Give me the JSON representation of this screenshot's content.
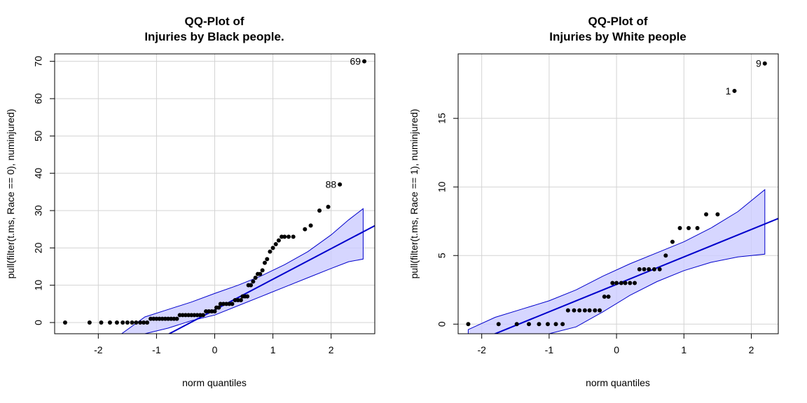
{
  "chart_data": [
    {
      "type": "scatter",
      "title_line1": "QQ-Plot of",
      "title_line2": "Injuries by Black people.",
      "xlabel": "norm quantiles",
      "ylabel": "pull(filter(t.ms, Race == 0), numinjured)",
      "xlim": [
        -2.75,
        2.75
      ],
      "ylim": [
        -3,
        72
      ],
      "xticks": [
        -2,
        -1,
        0,
        1,
        2
      ],
      "yticks": [
        0,
        10,
        20,
        30,
        40,
        50,
        60,
        70
      ],
      "grid": true,
      "colors": {
        "points": "#000000",
        "line": "#0000cc",
        "band_fill": "#ccccff",
        "band_edge": "#0000cc",
        "grid": "#d3d3d3"
      },
      "reference_line": {
        "intercept": 3.4,
        "slope": 8.2
      },
      "confidence_band": {
        "x": [
          -1.6,
          -1.2,
          -0.8,
          -0.4,
          0,
          0.4,
          0.8,
          1.2,
          1.6,
          2.0,
          2.3,
          2.55
        ],
        "lower": [
          -3,
          -3,
          -1.5,
          0.5,
          2.0,
          4.5,
          7.0,
          9.5,
          12.0,
          14.5,
          16.3,
          17.0
        ],
        "upper": [
          -3,
          1.5,
          3.5,
          5.5,
          7.8,
          10.0,
          12.5,
          15.5,
          19.0,
          23.5,
          27.5,
          30.5
        ]
      },
      "points": [
        [
          -2.57,
          0
        ],
        [
          -2.15,
          0
        ],
        [
          -1.95,
          0
        ],
        [
          -1.8,
          0
        ],
        [
          -1.68,
          0
        ],
        [
          -1.58,
          0
        ],
        [
          -1.5,
          0
        ],
        [
          -1.42,
          0
        ],
        [
          -1.35,
          0
        ],
        [
          -1.28,
          0
        ],
        [
          -1.22,
          0
        ],
        [
          -1.16,
          0
        ],
        [
          -1.1,
          1
        ],
        [
          -1.05,
          1
        ],
        [
          -1.0,
          1
        ],
        [
          -0.95,
          1
        ],
        [
          -0.9,
          1
        ],
        [
          -0.85,
          1
        ],
        [
          -0.8,
          1
        ],
        [
          -0.75,
          1
        ],
        [
          -0.7,
          1
        ],
        [
          -0.65,
          1
        ],
        [
          -0.6,
          2
        ],
        [
          -0.55,
          2
        ],
        [
          -0.5,
          2
        ],
        [
          -0.45,
          2
        ],
        [
          -0.4,
          2
        ],
        [
          -0.35,
          2
        ],
        [
          -0.3,
          2
        ],
        [
          -0.25,
          2
        ],
        [
          -0.2,
          2
        ],
        [
          -0.15,
          3
        ],
        [
          -0.1,
          3
        ],
        [
          -0.05,
          3
        ],
        [
          0.0,
          3
        ],
        [
          0.03,
          4
        ],
        [
          0.07,
          4
        ],
        [
          0.1,
          5
        ],
        [
          0.15,
          5
        ],
        [
          0.2,
          5
        ],
        [
          0.25,
          5
        ],
        [
          0.3,
          5
        ],
        [
          0.35,
          6
        ],
        [
          0.4,
          6
        ],
        [
          0.45,
          6
        ],
        [
          0.48,
          7
        ],
        [
          0.52,
          7
        ],
        [
          0.56,
          7
        ],
        [
          0.58,
          10
        ],
        [
          0.62,
          10
        ],
        [
          0.66,
          11
        ],
        [
          0.7,
          12
        ],
        [
          0.74,
          13
        ],
        [
          0.78,
          13
        ],
        [
          0.82,
          14
        ],
        [
          0.86,
          16
        ],
        [
          0.9,
          17
        ],
        [
          0.95,
          19
        ],
        [
          1.0,
          20
        ],
        [
          1.05,
          21
        ],
        [
          1.1,
          22
        ],
        [
          1.15,
          23
        ],
        [
          1.2,
          23
        ],
        [
          1.27,
          23
        ],
        [
          1.35,
          23
        ],
        [
          1.55,
          25
        ],
        [
          1.65,
          26
        ],
        [
          1.8,
          30
        ],
        [
          1.95,
          31
        ],
        [
          2.15,
          37
        ],
        [
          2.57,
          70
        ]
      ],
      "annotations": [
        {
          "text": "88",
          "x": 2.15,
          "y": 37
        },
        {
          "text": "69",
          "x": 2.57,
          "y": 70
        }
      ]
    },
    {
      "type": "scatter",
      "title_line1": "QQ-Plot of",
      "title_line2": "Injuries by White people",
      "xlabel": "norm quantiles",
      "ylabel": "pull(filter(t.ms, Race == 1), numinjured)",
      "xlim": [
        -2.35,
        2.4
      ],
      "ylim": [
        -0.7,
        19.7
      ],
      "xticks": [
        -2,
        -1,
        0,
        1,
        2
      ],
      "yticks": [
        0,
        5,
        10,
        15
      ],
      "grid": true,
      "colors": {
        "points": "#000000",
        "line": "#0000cc",
        "band_fill": "#ccccff",
        "band_edge": "#0000cc",
        "grid": "#d3d3d3"
      },
      "reference_line": {
        "intercept": 2.9,
        "slope": 2.0
      },
      "confidence_band": {
        "x": [
          -2.2,
          -1.8,
          -1.4,
          -1.0,
          -0.6,
          -0.2,
          0.2,
          0.6,
          1.0,
          1.4,
          1.8,
          2.2
        ],
        "lower": [
          -0.7,
          -0.7,
          -0.7,
          -0.7,
          -0.2,
          0.9,
          2.1,
          3.1,
          3.9,
          4.5,
          4.9,
          5.1
        ],
        "upper": [
          -0.4,
          0.5,
          1.1,
          1.7,
          2.5,
          3.5,
          4.4,
          5.2,
          6.0,
          7.0,
          8.2,
          9.8
        ]
      },
      "points": [
        [
          -2.2,
          0
        ],
        [
          -1.75,
          0
        ],
        [
          -1.48,
          0
        ],
        [
          -1.3,
          0
        ],
        [
          -1.15,
          0
        ],
        [
          -1.02,
          0
        ],
        [
          -0.9,
          0
        ],
        [
          -0.8,
          0
        ],
        [
          -0.72,
          1
        ],
        [
          -0.63,
          1
        ],
        [
          -0.55,
          1
        ],
        [
          -0.47,
          1
        ],
        [
          -0.4,
          1
        ],
        [
          -0.32,
          1
        ],
        [
          -0.25,
          1
        ],
        [
          -0.18,
          2
        ],
        [
          -0.12,
          2
        ],
        [
          -0.06,
          3
        ],
        [
          0.0,
          3
        ],
        [
          0.07,
          3
        ],
        [
          0.13,
          3
        ],
        [
          0.2,
          3
        ],
        [
          0.27,
          3
        ],
        [
          0.34,
          4
        ],
        [
          0.41,
          4
        ],
        [
          0.48,
          4
        ],
        [
          0.56,
          4
        ],
        [
          0.64,
          4
        ],
        [
          0.73,
          5
        ],
        [
          0.83,
          6
        ],
        [
          0.94,
          7
        ],
        [
          1.07,
          7
        ],
        [
          1.2,
          7
        ],
        [
          1.33,
          8
        ],
        [
          1.5,
          8
        ],
        [
          1.75,
          17
        ],
        [
          2.2,
          19
        ]
      ],
      "annotations": [
        {
          "text": "1",
          "x": 1.75,
          "y": 17
        },
        {
          "text": "9",
          "x": 2.2,
          "y": 19
        }
      ]
    }
  ]
}
